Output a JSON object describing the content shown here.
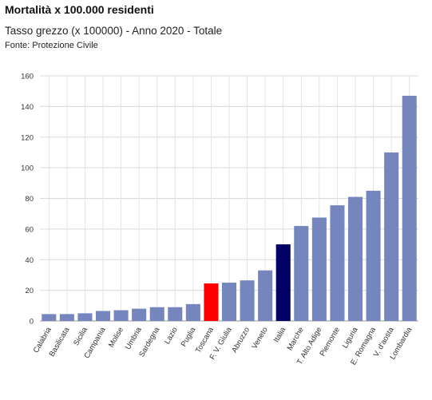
{
  "header": {
    "title": "Mortalità x 100.000 residenti",
    "subtitle": "Tasso grezzo (x 100000) - Anno 2020 - Totale",
    "source": "Fonte: Protezione Civile"
  },
  "chart_data": {
    "type": "bar",
    "categories": [
      "Calabria",
      "Basilicata",
      "Sicilia",
      "Campania",
      "Molise",
      "Umbria",
      "Sardegna",
      "Lazio",
      "Puglia",
      "Toscana",
      "F. V. Giulia",
      "Abruzzo",
      "Veneto",
      "Italia",
      "Marche",
      "T. Alto Adige",
      "Piemonte",
      "Liguria",
      "E. Romagna",
      "V. d'aosta",
      "Lombardia"
    ],
    "values": [
      4.5,
      4.5,
      5,
      6.5,
      7,
      8,
      9,
      9,
      11,
      24.5,
      25,
      26.5,
      33,
      50,
      62,
      67.5,
      75.5,
      81,
      85,
      110,
      147
    ],
    "colors": [
      "#7585bd",
      "#7585bd",
      "#7585bd",
      "#7585bd",
      "#7585bd",
      "#7585bd",
      "#7585bd",
      "#7585bd",
      "#7585bd",
      "#ff0000",
      "#7585bd",
      "#7585bd",
      "#7585bd",
      "#000066",
      "#7585bd",
      "#7585bd",
      "#7585bd",
      "#7585bd",
      "#7585bd",
      "#7585bd",
      "#7585bd"
    ],
    "ylim": [
      0,
      160
    ],
    "yticks": [
      0,
      20,
      40,
      60,
      80,
      100,
      120,
      140,
      160
    ],
    "grid": true,
    "legend": "none"
  }
}
